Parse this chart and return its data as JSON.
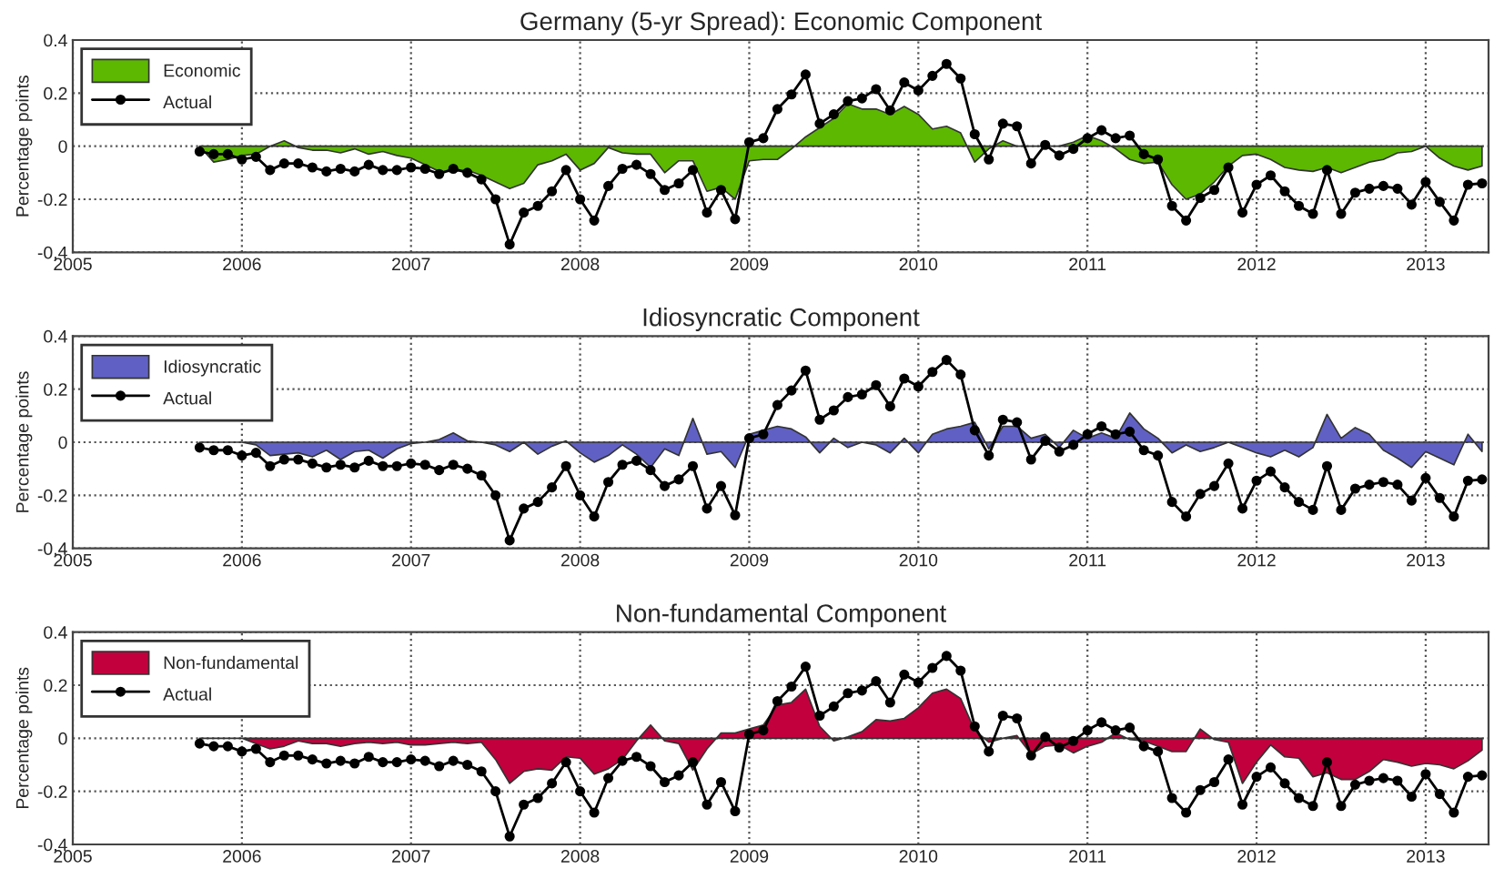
{
  "chart_data": [
    {
      "type": "area",
      "title": "Germany (5-yr Spread): Economic Component",
      "ylabel": "Percentage points",
      "x": [
        "2005-10",
        "2005-11",
        "2005-12",
        "2006-01",
        "2006-02",
        "2006-03",
        "2006-04",
        "2006-05",
        "2006-06",
        "2006-07",
        "2006-08",
        "2006-09",
        "2006-10",
        "2006-11",
        "2006-12",
        "2007-01",
        "2007-02",
        "2007-03",
        "2007-04",
        "2007-05",
        "2007-06",
        "2007-07",
        "2007-08",
        "2007-09",
        "2007-10",
        "2007-11",
        "2007-12",
        "2008-01",
        "2008-02",
        "2008-03",
        "2008-04",
        "2008-05",
        "2008-06",
        "2008-07",
        "2008-08",
        "2008-09",
        "2008-10",
        "2008-11",
        "2008-12",
        "2009-01",
        "2009-02",
        "2009-03",
        "2009-04",
        "2009-05",
        "2009-06",
        "2009-07",
        "2009-08",
        "2009-09",
        "2009-10",
        "2009-11",
        "2009-12",
        "2010-01",
        "2010-02",
        "2010-03",
        "2010-04",
        "2010-05",
        "2010-06",
        "2010-07",
        "2010-08",
        "2010-09",
        "2010-10",
        "2010-11",
        "2010-12",
        "2011-01",
        "2011-02",
        "2011-03",
        "2011-04",
        "2011-05",
        "2011-06",
        "2011-07",
        "2011-08",
        "2011-09",
        "2011-10",
        "2011-11",
        "2011-12",
        "2012-01",
        "2012-02",
        "2012-03",
        "2012-04",
        "2012-05",
        "2012-06",
        "2012-07",
        "2012-08",
        "2012-09",
        "2012-10",
        "2012-11",
        "2012-12",
        "2013-01",
        "2013-02",
        "2013-03",
        "2013-04",
        "2013-05"
      ],
      "series": [
        {
          "name": "Economic",
          "color": "#5cb800",
          "values": [
            0,
            -0.06,
            -0.05,
            -0.035,
            -0.03,
            0.0,
            0.02,
            -0.005,
            -0.015,
            -0.015,
            -0.025,
            -0.01,
            -0.03,
            -0.02,
            -0.035,
            -0.045,
            -0.07,
            -0.095,
            -0.095,
            -0.09,
            -0.11,
            -0.135,
            -0.16,
            -0.14,
            -0.07,
            -0.055,
            -0.03,
            -0.09,
            -0.065,
            -0.005,
            -0.025,
            -0.03,
            -0.03,
            -0.1,
            -0.055,
            -0.055,
            -0.17,
            -0.155,
            -0.2,
            -0.055,
            -0.05,
            -0.05,
            -0.01,
            0.035,
            0.07,
            0.105,
            0.16,
            0.14,
            0.14,
            0.12,
            0.15,
            0.12,
            0.065,
            0.075,
            0.05,
            -0.06,
            -0.01,
            0.02,
            0,
            0,
            0,
            0,
            0.015,
            0.04,
            0.02,
            -0.01,
            -0.05,
            -0.065,
            -0.06,
            -0.145,
            -0.2,
            -0.18,
            -0.135,
            -0.075,
            -0.035,
            -0.03,
            -0.05,
            -0.08,
            -0.09,
            -0.095,
            -0.08,
            -0.1,
            -0.08,
            -0.06,
            -0.05,
            -0.025,
            -0.02,
            0,
            -0.045,
            -0.075,
            -0.09,
            -0.075
          ]
        },
        {
          "name": "Actual",
          "type": "line",
          "color": "#000000",
          "marker": "circle",
          "values": [
            -0.02,
            -0.03,
            -0.03,
            -0.05,
            -0.04,
            -0.09,
            -0.065,
            -0.065,
            -0.08,
            -0.095,
            -0.085,
            -0.095,
            -0.07,
            -0.09,
            -0.09,
            -0.08,
            -0.085,
            -0.105,
            -0.085,
            -0.1,
            -0.125,
            -0.2,
            -0.37,
            -0.25,
            -0.225,
            -0.17,
            -0.09,
            -0.2,
            -0.28,
            -0.15,
            -0.085,
            -0.07,
            -0.105,
            -0.165,
            -0.14,
            -0.09,
            -0.25,
            -0.165,
            -0.275,
            0.015,
            0.03,
            0.14,
            0.195,
            0.27,
            0.085,
            0.12,
            0.17,
            0.18,
            0.215,
            0.135,
            0.24,
            0.21,
            0.265,
            0.31,
            0.255,
            0.045,
            -0.05,
            0.085,
            0.075,
            -0.065,
            0.005,
            -0.035,
            -0.01,
            0.03,
            0.06,
            0.03,
            0.04,
            -0.03,
            -0.05,
            -0.225,
            -0.28,
            -0.195,
            -0.165,
            -0.08,
            -0.25,
            -0.145,
            -0.11,
            -0.17,
            -0.225,
            -0.255,
            -0.09,
            -0.255,
            -0.175,
            -0.16,
            -0.15,
            -0.16,
            -0.22,
            -0.135,
            -0.21,
            -0.28,
            -0.145,
            -0.14
          ]
        }
      ],
      "xlim": [
        "2005-01",
        "2013-05-15"
      ],
      "xticks": [
        "2005",
        "2006",
        "2007",
        "2008",
        "2009",
        "2010",
        "2011",
        "2012",
        "2013"
      ],
      "ylim": [
        -0.4,
        0.4
      ],
      "yticks": [
        -0.4,
        -0.2,
        0,
        0.2,
        0.4
      ],
      "grid": true,
      "legend": "top left"
    },
    {
      "type": "area",
      "title": "Idiosyncratic Component",
      "ylabel": "Percentage points",
      "x": [
        "2005-10",
        "2005-11",
        "2005-12",
        "2006-01",
        "2006-02",
        "2006-03",
        "2006-04",
        "2006-05",
        "2006-06",
        "2006-07",
        "2006-08",
        "2006-09",
        "2006-10",
        "2006-11",
        "2006-12",
        "2007-01",
        "2007-02",
        "2007-03",
        "2007-04",
        "2007-05",
        "2007-06",
        "2007-07",
        "2007-08",
        "2007-09",
        "2007-10",
        "2007-11",
        "2007-12",
        "2008-01",
        "2008-02",
        "2008-03",
        "2008-04",
        "2008-05",
        "2008-06",
        "2008-07",
        "2008-08",
        "2008-09",
        "2008-10",
        "2008-11",
        "2008-12",
        "2009-01",
        "2009-02",
        "2009-03",
        "2009-04",
        "2009-05",
        "2009-06",
        "2009-07",
        "2009-08",
        "2009-09",
        "2009-10",
        "2009-11",
        "2009-12",
        "2010-01",
        "2010-02",
        "2010-03",
        "2010-04",
        "2010-05",
        "2010-06",
        "2010-07",
        "2010-08",
        "2010-09",
        "2010-10",
        "2010-11",
        "2010-12",
        "2011-01",
        "2011-02",
        "2011-03",
        "2011-04",
        "2011-05",
        "2011-06",
        "2011-07",
        "2011-08",
        "2011-09",
        "2011-10",
        "2011-11",
        "2011-12",
        "2012-01",
        "2012-02",
        "2012-03",
        "2012-04",
        "2012-05",
        "2012-06",
        "2012-07",
        "2012-08",
        "2012-09",
        "2012-10",
        "2012-11",
        "2012-12",
        "2013-01",
        "2013-02",
        "2013-03",
        "2013-04",
        "2013-05"
      ],
      "series": [
        {
          "name": "Idiosyncratic",
          "color": "#6060c4",
          "values": [
            0,
            0,
            0,
            0,
            -0.01,
            -0.05,
            -0.045,
            -0.04,
            -0.055,
            -0.03,
            -0.065,
            -0.035,
            -0.03,
            -0.06,
            -0.025,
            -0.005,
            0,
            0.01,
            0.035,
            0.005,
            0,
            -0.01,
            -0.035,
            0,
            -0.045,
            -0.015,
            0.005,
            -0.04,
            -0.075,
            -0.05,
            -0.01,
            -0.045,
            -0.095,
            -0.025,
            -0.05,
            0.09,
            -0.045,
            -0.035,
            -0.095,
            0.03,
            0.045,
            0.06,
            0.05,
            0.02,
            -0.04,
            0.015,
            -0.02,
            0.0,
            -0.01,
            -0.04,
            0.015,
            -0.04,
            0.03,
            0.05,
            0.06,
            0.075,
            -0.025,
            0.06,
            0.06,
            0.015,
            0.03,
            -0.02,
            0.045,
            0.015,
            0.035,
            0.015,
            0.11,
            0.05,
            0.015,
            -0.04,
            -0.01,
            -0.035,
            -0.02,
            0.0,
            -0.02,
            -0.04,
            -0.055,
            -0.03,
            -0.055,
            -0.02,
            0.105,
            0.015,
            0.055,
            0.03,
            -0.03,
            -0.06,
            -0.095,
            -0.035,
            -0.06,
            -0.085,
            0.03,
            -0.035
          ]
        },
        {
          "name": "Actual",
          "type": "line",
          "color": "#000000",
          "marker": "circle",
          "values": [
            -0.02,
            -0.03,
            -0.03,
            -0.05,
            -0.04,
            -0.09,
            -0.065,
            -0.065,
            -0.08,
            -0.095,
            -0.085,
            -0.095,
            -0.07,
            -0.09,
            -0.09,
            -0.08,
            -0.085,
            -0.105,
            -0.085,
            -0.1,
            -0.125,
            -0.2,
            -0.37,
            -0.25,
            -0.225,
            -0.17,
            -0.09,
            -0.2,
            -0.28,
            -0.15,
            -0.085,
            -0.07,
            -0.105,
            -0.165,
            -0.14,
            -0.09,
            -0.25,
            -0.165,
            -0.275,
            0.015,
            0.03,
            0.14,
            0.195,
            0.27,
            0.085,
            0.12,
            0.17,
            0.18,
            0.215,
            0.135,
            0.24,
            0.21,
            0.265,
            0.31,
            0.255,
            0.045,
            -0.05,
            0.085,
            0.075,
            -0.065,
            0.005,
            -0.035,
            -0.01,
            0.03,
            0.06,
            0.03,
            0.04,
            -0.03,
            -0.05,
            -0.225,
            -0.28,
            -0.195,
            -0.165,
            -0.08,
            -0.25,
            -0.145,
            -0.11,
            -0.17,
            -0.225,
            -0.255,
            -0.09,
            -0.255,
            -0.175,
            -0.16,
            -0.15,
            -0.16,
            -0.22,
            -0.135,
            -0.21,
            -0.28,
            -0.145,
            -0.14
          ]
        }
      ],
      "xlim": [
        "2005-01",
        "2013-05-15"
      ],
      "xticks": [
        "2005",
        "2006",
        "2007",
        "2008",
        "2009",
        "2010",
        "2011",
        "2012",
        "2013"
      ],
      "ylim": [
        -0.4,
        0.4
      ],
      "yticks": [
        -0.4,
        -0.2,
        0,
        0.2,
        0.4
      ],
      "grid": true,
      "legend": "top left"
    },
    {
      "type": "area",
      "title": "Non-fundamental Component",
      "ylabel": "Percentage points",
      "x": [
        "2005-10",
        "2005-11",
        "2005-12",
        "2006-01",
        "2006-02",
        "2006-03",
        "2006-04",
        "2006-05",
        "2006-06",
        "2006-07",
        "2006-08",
        "2006-09",
        "2006-10",
        "2006-11",
        "2006-12",
        "2007-01",
        "2007-02",
        "2007-03",
        "2007-04",
        "2007-05",
        "2007-06",
        "2007-07",
        "2007-08",
        "2007-09",
        "2007-10",
        "2007-11",
        "2007-12",
        "2008-01",
        "2008-02",
        "2008-03",
        "2008-04",
        "2008-05",
        "2008-06",
        "2008-07",
        "2008-08",
        "2008-09",
        "2008-10",
        "2008-11",
        "2008-12",
        "2009-01",
        "2009-02",
        "2009-03",
        "2009-04",
        "2009-05",
        "2009-06",
        "2009-07",
        "2009-08",
        "2009-09",
        "2009-10",
        "2009-11",
        "2009-12",
        "2010-01",
        "2010-02",
        "2010-03",
        "2010-04",
        "2010-05",
        "2010-06",
        "2010-07",
        "2010-08",
        "2010-09",
        "2010-10",
        "2010-11",
        "2010-12",
        "2011-01",
        "2011-02",
        "2011-03",
        "2011-04",
        "2011-05",
        "2011-06",
        "2011-07",
        "2011-08",
        "2011-09",
        "2011-10",
        "2011-11",
        "2011-12",
        "2012-01",
        "2012-02",
        "2012-03",
        "2012-04",
        "2012-05",
        "2012-06",
        "2012-07",
        "2012-08",
        "2012-09",
        "2012-10",
        "2012-11",
        "2012-12",
        "2013-01",
        "2013-02",
        "2013-03",
        "2013-04",
        "2013-05"
      ],
      "series": [
        {
          "name": "Non-fundamental",
          "color": "#c2003d",
          "values": [
            0,
            0,
            0,
            0,
            -0.02,
            -0.04,
            -0.03,
            -0.01,
            -0.02,
            -0.02,
            -0.03,
            -0.02,
            -0.015,
            -0.02,
            -0.015,
            -0.025,
            -0.025,
            -0.02,
            -0.015,
            -0.02,
            -0.015,
            -0.08,
            -0.17,
            -0.125,
            -0.115,
            -0.12,
            -0.07,
            -0.075,
            -0.135,
            -0.115,
            -0.08,
            -0.01,
            0.05,
            -0.01,
            -0.02,
            -0.12,
            -0.04,
            0.02,
            0.02,
            0.035,
            0.05,
            0.125,
            0.135,
            0.185,
            0.045,
            -0.01,
            0.005,
            0.025,
            0.07,
            0.065,
            0.075,
            0.115,
            0.17,
            0.185,
            0.15,
            0.03,
            -0.015,
            0,
            0.01,
            -0.06,
            -0.03,
            -0.025,
            -0.055,
            -0.03,
            -0.015,
            0.02,
            -0.005,
            -0.01,
            -0.03,
            -0.05,
            -0.05,
            0.035,
            -0.005,
            -0.015,
            -0.17,
            -0.09,
            -0.025,
            -0.07,
            -0.075,
            -0.145,
            -0.13,
            -0.155,
            -0.155,
            -0.125,
            -0.08,
            -0.09,
            -0.105,
            -0.095,
            -0.1,
            -0.115,
            -0.085,
            -0.045
          ]
        },
        {
          "name": "Actual",
          "type": "line",
          "color": "#000000",
          "marker": "circle",
          "values": [
            -0.02,
            -0.03,
            -0.03,
            -0.05,
            -0.04,
            -0.09,
            -0.065,
            -0.065,
            -0.08,
            -0.095,
            -0.085,
            -0.095,
            -0.07,
            -0.09,
            -0.09,
            -0.08,
            -0.085,
            -0.105,
            -0.085,
            -0.1,
            -0.125,
            -0.2,
            -0.37,
            -0.25,
            -0.225,
            -0.17,
            -0.09,
            -0.2,
            -0.28,
            -0.15,
            -0.085,
            -0.07,
            -0.105,
            -0.165,
            -0.14,
            -0.09,
            -0.25,
            -0.165,
            -0.275,
            0.015,
            0.03,
            0.14,
            0.195,
            0.27,
            0.085,
            0.12,
            0.17,
            0.18,
            0.215,
            0.135,
            0.24,
            0.21,
            0.265,
            0.31,
            0.255,
            0.045,
            -0.05,
            0.085,
            0.075,
            -0.065,
            0.005,
            -0.035,
            -0.01,
            0.03,
            0.06,
            0.03,
            0.04,
            -0.03,
            -0.05,
            -0.225,
            -0.28,
            -0.195,
            -0.165,
            -0.08,
            -0.25,
            -0.145,
            -0.11,
            -0.17,
            -0.225,
            -0.255,
            -0.09,
            -0.255,
            -0.175,
            -0.16,
            -0.15,
            -0.16,
            -0.22,
            -0.135,
            -0.21,
            -0.28,
            -0.145,
            -0.14
          ]
        }
      ],
      "xlim": [
        "2005-01",
        "2013-05-15"
      ],
      "xticks": [
        "2005",
        "2006",
        "2007",
        "2008",
        "2009",
        "2010",
        "2011",
        "2012",
        "2013"
      ],
      "ylim": [
        -0.4,
        0.4
      ],
      "yticks": [
        -0.4,
        -0.2,
        0,
        0.2,
        0.4
      ],
      "grid": true,
      "legend": "top left"
    }
  ]
}
